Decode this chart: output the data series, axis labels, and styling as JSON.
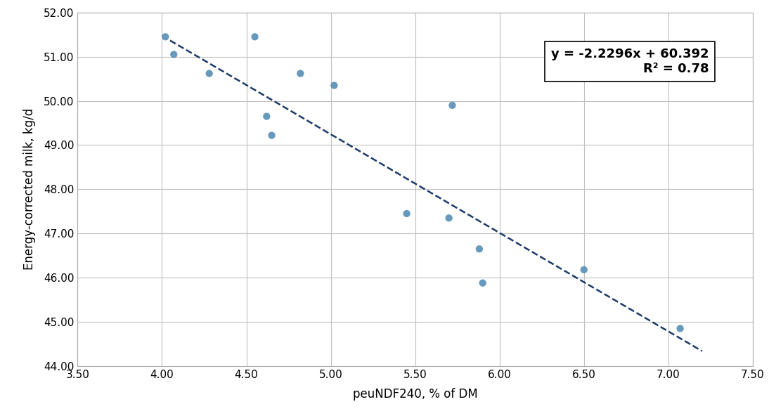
{
  "x_data": [
    4.02,
    4.07,
    4.28,
    4.55,
    4.62,
    4.65,
    4.82,
    5.02,
    5.45,
    5.7,
    5.72,
    5.88,
    5.9,
    6.5,
    7.07
  ],
  "y_data": [
    51.45,
    51.05,
    50.62,
    51.45,
    49.65,
    49.22,
    50.62,
    50.35,
    47.45,
    47.35,
    49.9,
    46.65,
    45.88,
    46.18,
    44.85
  ],
  "slope": -2.2296,
  "intercept": 60.392,
  "r2": 0.78,
  "line_x_start": 4.0,
  "line_x_end": 7.2,
  "equation_text": "y = -2.2296x + 60.392",
  "r2_text": "R² = 0.78",
  "xlabel": "peuNDF240, % of DM",
  "ylabel": "Energy-corrected milk, kg/d",
  "xlim": [
    3.5,
    7.5
  ],
  "ylim": [
    44.0,
    52.0
  ],
  "xticks": [
    3.5,
    4.0,
    4.5,
    5.0,
    5.5,
    6.0,
    6.5,
    7.0,
    7.5
  ],
  "yticks": [
    44.0,
    45.0,
    46.0,
    47.0,
    48.0,
    49.0,
    50.0,
    51.0,
    52.0
  ],
  "dot_color": "#6699bb",
  "line_color": "#1a3a6b",
  "background_color": "#ffffff",
  "grid_color": "#c0c0c0",
  "box_color": "#ffffff",
  "box_edge_color": "#000000",
  "dot_size": 55,
  "line_width": 1.8,
  "font_size_ticks": 11,
  "font_size_labels": 12,
  "font_size_equation": 13
}
